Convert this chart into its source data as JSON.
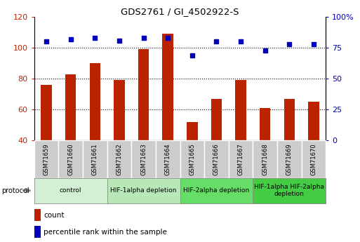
{
  "title": "GDS2761 / GI_4502922-S",
  "samples": [
    "GSM71659",
    "GSM71660",
    "GSM71661",
    "GSM71662",
    "GSM71663",
    "GSM71664",
    "GSM71665",
    "GSM71666",
    "GSM71667",
    "GSM71668",
    "GSM71669",
    "GSM71670"
  ],
  "counts": [
    76,
    83,
    90,
    79,
    99,
    109,
    52,
    67,
    79,
    61,
    67,
    65
  ],
  "percentiles": [
    80,
    82,
    83,
    81,
    83,
    83,
    69,
    80,
    80,
    73,
    78,
    78
  ],
  "ylim_left": [
    40,
    120
  ],
  "ylim_right": [
    0,
    100
  ],
  "yticks_left": [
    40,
    60,
    80,
    100,
    120
  ],
  "yticks_right": [
    0,
    25,
    50,
    75,
    100
  ],
  "ytick_labels_left": [
    "40",
    "60",
    "80",
    "100",
    "120"
  ],
  "ytick_labels_right": [
    "0",
    "25",
    "50",
    "75",
    "100%"
  ],
  "bar_color": "#bb2200",
  "dot_color": "#0000bb",
  "protocol_groups": [
    {
      "label": "control",
      "start": 0,
      "end": 2,
      "color": "#d4f0d4"
    },
    {
      "label": "HIF-1alpha depletion",
      "start": 3,
      "end": 5,
      "color": "#b8e8b8"
    },
    {
      "label": "HIF-2alpha depletion",
      "start": 6,
      "end": 8,
      "color": "#66dd66"
    },
    {
      "label": "HIF-1alpha HIF-2alpha\ndepletion",
      "start": 9,
      "end": 11,
      "color": "#44cc44"
    }
  ],
  "protocol_label": "protocol",
  "legend_count_label": "count",
  "legend_percentile_label": "percentile rank within the sample",
  "tick_label_bg": "#cccccc",
  "bar_width": 0.45,
  "dot_size": 22
}
